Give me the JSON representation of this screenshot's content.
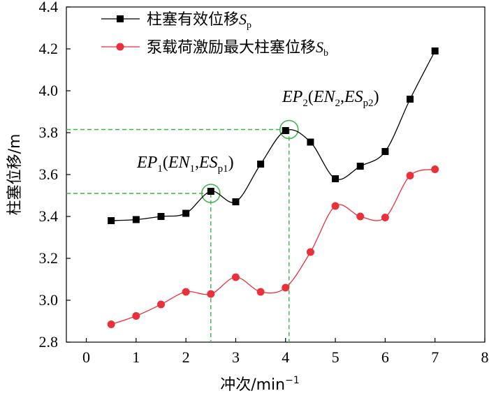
{
  "chart_data": {
    "type": "line",
    "title": "",
    "xlabel": "冲次/min",
    "xlabel_sup": "−1",
    "ylabel": "柱塞位移/m",
    "xlim": [
      -0.4,
      8
    ],
    "ylim": [
      2.8,
      4.4
    ],
    "xticks": [
      "0",
      "1",
      "2",
      "3",
      "4",
      "5",
      "6",
      "7",
      "8"
    ],
    "yticks": [
      "2.8",
      "3.0",
      "3.2",
      "3.4",
      "3.6",
      "3.8",
      "4.0",
      "4.2",
      "4.4"
    ],
    "grid": false,
    "legend_position": "top-left",
    "series": [
      {
        "name": "柱塞有效位移",
        "name_var": "S",
        "name_sub": "p",
        "marker": "square",
        "color": "#000000",
        "x": [
          0.5,
          1,
          1.5,
          2,
          2.5,
          3,
          3.5,
          4,
          4.5,
          5,
          5.5,
          6,
          6.5,
          7
        ],
        "y": [
          3.38,
          3.385,
          3.4,
          3.415,
          3.52,
          3.47,
          3.65,
          3.81,
          3.755,
          3.58,
          3.64,
          3.71,
          3.96,
          4.19
        ]
      },
      {
        "name": "泵载荷激励最大柱塞位移",
        "name_var": "S",
        "name_sub": "b",
        "marker": "circle",
        "color": "#e8313a",
        "x": [
          0.5,
          1,
          1.5,
          2,
          2.5,
          3,
          3.5,
          4,
          4.5,
          5,
          5.5,
          6,
          6.5,
          7
        ],
        "y": [
          2.885,
          2.925,
          2.98,
          3.04,
          3.03,
          3.11,
          3.04,
          3.06,
          3.23,
          3.45,
          3.4,
          3.395,
          3.595,
          3.625
        ]
      }
    ],
    "annotations": [
      {
        "x": 2.5,
        "y": 3.51,
        "parts": [
          [
            "var",
            "EP"
          ],
          [
            "sub",
            "1"
          ],
          [
            "up",
            "("
          ],
          [
            "var",
            "EN"
          ],
          [
            "sub",
            "1"
          ],
          [
            "up",
            ","
          ],
          [
            "var",
            "ES"
          ],
          [
            "sub",
            "p1"
          ],
          [
            "up",
            ")"
          ]
        ]
      },
      {
        "x": 4.07,
        "y": 3.815,
        "parts": [
          [
            "var",
            "EP"
          ],
          [
            "sub",
            "2"
          ],
          [
            "up",
            "("
          ],
          [
            "var",
            "EN"
          ],
          [
            "sub",
            "2"
          ],
          [
            "up",
            ","
          ],
          [
            "var",
            "ES"
          ],
          [
            "sub",
            "p2"
          ],
          [
            "up",
            ")"
          ]
        ]
      }
    ],
    "guide_color": "#3cb44b"
  }
}
